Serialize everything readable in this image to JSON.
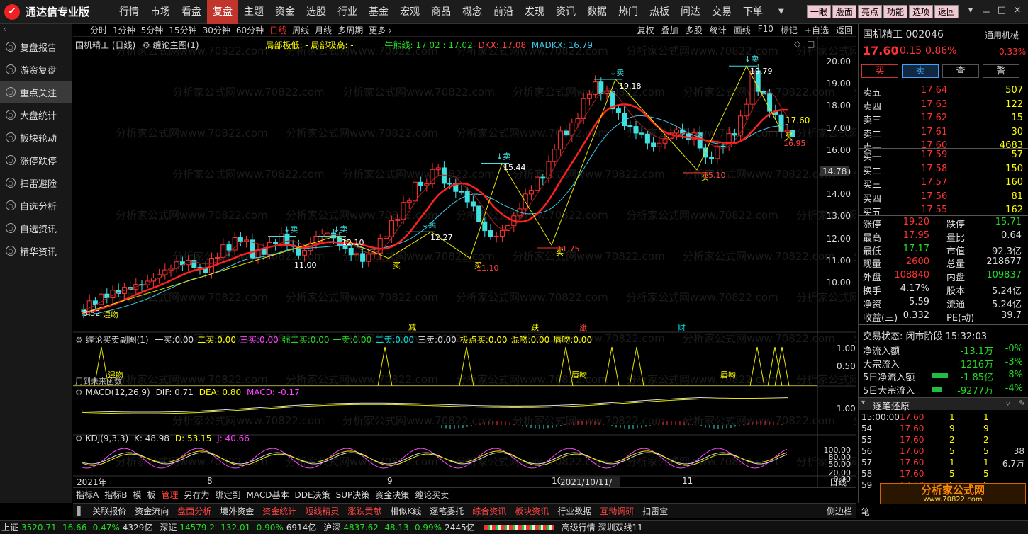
{
  "app": {
    "title": "通达信专业版",
    "logo_char": "✔"
  },
  "menu": [
    "行情",
    "市场",
    "看盘",
    "复盘",
    "主题",
    "资金",
    "选股",
    "行业",
    "基金",
    "宏观",
    "商品",
    "概念",
    "前沿",
    "发现",
    "资讯",
    "数据",
    "热门",
    "热板",
    "问达",
    "交易",
    "下单"
  ],
  "menu_active": "复盘",
  "top_pills": [
    "一眼",
    "版面",
    "亮点",
    "功能",
    "选项",
    "返回"
  ],
  "window_btns": [
    "▾",
    "－",
    "□",
    "×"
  ],
  "sidebar": [
    "复盘报告",
    "游资复盘",
    "重点关注",
    "大盘统计",
    "板块轮动",
    "涨停跌停",
    "扫雷避险",
    "自选分析",
    "自选资讯",
    "精华资讯"
  ],
  "sidebar_active": "重点关注",
  "periods": [
    "分时",
    "1分钟",
    "5分钟",
    "15分钟",
    "30分钟",
    "60分钟",
    "日线",
    "周线",
    "月线",
    "多周期",
    "更多 ›"
  ],
  "period_active": "日线",
  "tools": [
    "复权",
    "叠加",
    "多股",
    "统计",
    "画线",
    "F10",
    "标记",
    "+自选",
    "返回"
  ],
  "main_pane": {
    "title": "国机精工 (日线)",
    "indicator": "缠论主图(1)",
    "local_high_low": "局部极低: -  局部极高: -",
    "niu": "牛熊线: 17.02 : 17.02",
    "dkx": "DKX: 17.08",
    "madkx": "MADKX: 16.79",
    "price_ticks": [
      "20.00",
      "19.00",
      "18.00",
      "17.00",
      "16.00",
      "15.00",
      "14.00",
      "13.00",
      "12.00",
      "11.00",
      "10.00"
    ],
    "cursor_price": "14.78",
    "last_price_label": "17.60",
    "peak_labels": [
      "11.00",
      "12.10",
      "12.27",
      "15.44",
      "19.18",
      "19.79"
    ],
    "trough_labels": [
      "11.10",
      "11.75",
      "15.10",
      "16.95",
      "8.52"
    ],
    "sell_label": "↓卖",
    "buy_label": "买",
    "left_note": "混吻",
    "events": [
      "减",
      "跌",
      "涨",
      "财"
    ]
  },
  "sub1": {
    "title": "缠论买卖副图(1)",
    "items": [
      {
        "k": "一买:",
        "v": "0.00",
        "c": "white"
      },
      {
        "k": "二买:",
        "v": "0.00",
        "c": "yellow"
      },
      {
        "k": "三买:",
        "v": "0.00",
        "c": "magenta"
      },
      {
        "k": "强二买:",
        "v": "0.00",
        "c": "green"
      },
      {
        "k": "一卖:",
        "v": "0.00",
        "c": "green"
      },
      {
        "k": "二卖:",
        "v": "0.00",
        "c": "cyan"
      },
      {
        "k": "三卖:",
        "v": "0.00",
        "c": "white"
      },
      {
        "k": "极点买:",
        "v": "0.00",
        "c": "yellow"
      },
      {
        "k": "混吻:",
        "v": "0.00",
        "c": "yellow"
      },
      {
        "k": "唇吻:",
        "v": "0.00",
        "c": "yellow"
      }
    ],
    "ticks": [
      "1.00",
      "0.50"
    ],
    "note": "用到未来函数",
    "labels": [
      "混吻",
      "唇吻",
      "唇吻"
    ]
  },
  "macd": {
    "title": "MACD(12,26,9)",
    "dif": "DIF: 0.71",
    "dea": "DEA: 0.80",
    "macd": "MACD: -0.17",
    "tick": "1.00"
  },
  "kdj": {
    "title": "KDJ(9,3,3)",
    "k": "K: 48.98",
    "d": "D: 53.15",
    "j": "J: 40.66",
    "ticks": [
      "100.00",
      "80.00",
      "50.00",
      "20.00",
      "0.00"
    ]
  },
  "xaxis": [
    "2021年",
    "8",
    "9",
    "10",
    "2021/10/11/一",
    "11"
  ],
  "xaxis_right": "日线",
  "bottom_tabs": [
    "指标A",
    "指标B",
    "模",
    "板",
    "管理",
    "另存为",
    "绑定到",
    "MACD基本",
    "DDE决策",
    "SUP决策",
    "资金决策",
    "缠论买卖"
  ],
  "bottom_tab_active": "管理",
  "funcbar": [
    "关联报价",
    "资金流向",
    "盘面分析",
    "境外资金",
    "资金统计",
    "短线精灵",
    "涨跌贡献",
    "相似K线",
    "逐笔委托",
    "综合资讯",
    "板块资讯",
    "行业数据",
    "互动调研",
    "扫雷宝"
  ],
  "funcbar_red": [
    "盘面分析",
    "资金统计",
    "短线精灵",
    "涨跌贡献",
    "综合资讯",
    "板块资讯",
    "互动调研"
  ],
  "funcbar_right": "侧边栏",
  "quote": {
    "name": "国机精工 002046",
    "sector": "通用机械",
    "price": "17.60",
    "change": "0.15",
    "pct": "0.86%",
    "pct2": "0.33%",
    "actions": [
      "买",
      "卖",
      "查",
      "警"
    ],
    "asks": [
      [
        "卖五",
        "17.64",
        "507"
      ],
      [
        "卖四",
        "17.63",
        "122"
      ],
      [
        "卖三",
        "17.62",
        "15"
      ],
      [
        "卖二",
        "17.61",
        "30"
      ],
      [
        "卖一",
        "17.60",
        "4683"
      ]
    ],
    "bids": [
      [
        "买一",
        "17.59",
        "57"
      ],
      [
        "买二",
        "17.58",
        "150"
      ],
      [
        "买三",
        "17.57",
        "160"
      ],
      [
        "买四",
        "17.56",
        "81"
      ],
      [
        "买五",
        "17.55",
        "162"
      ]
    ],
    "stats": [
      [
        "涨停",
        "19.20",
        "跌停",
        "15.71"
      ],
      [
        "最高",
        "17.95",
        "量比",
        "0.64"
      ],
      [
        "最低",
        "17.17",
        "市值",
        "92.3亿"
      ],
      [
        "现量",
        "2600",
        "总量",
        "218677"
      ],
      [
        "外盘",
        "108840",
        "内盘",
        "109837"
      ],
      [
        "换手",
        "4.17%",
        "股本",
        "5.24亿"
      ],
      [
        "净资",
        "5.59",
        "流通",
        "5.24亿"
      ],
      [
        "收益(三)",
        "0.332",
        "PE(动)",
        "39.7"
      ]
    ],
    "trade_status": "交易状态: 闭市阶段 15:32:03",
    "flows": [
      [
        "净流入额",
        "-13.1万",
        "-0%"
      ],
      [
        "大宗流入",
        "-1216万",
        "-3%"
      ],
      [
        "5日净流入额",
        "-1.85亿",
        "-8%"
      ],
      [
        "5日大宗流入",
        "-9277万",
        "-4%"
      ]
    ],
    "tick_title": "逐笔还原",
    "ticks": [
      [
        "15:00:00",
        "17.60",
        "1",
        "1",
        ""
      ],
      [
        "54",
        "17.60",
        "9",
        "9",
        ""
      ],
      [
        "55",
        "17.60",
        "2",
        "2",
        ""
      ],
      [
        "56",
        "17.60",
        "5",
        "5",
        "38"
      ],
      [
        "57",
        "17.60",
        "1",
        "1",
        "6.7万"
      ],
      [
        "58",
        "17.60",
        "5",
        "5",
        ""
      ],
      [
        "59",
        "17.60",
        "5",
        "5",
        ""
      ]
    ],
    "side_tab": "笔"
  },
  "status": {
    "sh": "上证",
    "sh_v": "3520.71",
    "sh_c": "-16.66",
    "sh_p": "-0.47%",
    "sh_amt": "4329亿",
    "sz": "深证",
    "sz_v": "14579.2",
    "sz_c": "-132.01",
    "sz_p": "-0.90%",
    "sz_amt": "6914亿",
    "hs": "沪深",
    "hs_v": "4837.62",
    "hs_c": "-48.13",
    "hs_p": "-0.99%",
    "hs_amt": "2445亿",
    "extra": "高级行情 深圳双线11"
  },
  "brand": {
    "name": "分析家公式网",
    "url": "www.70822.com"
  },
  "colors": {
    "up": "#ff3333",
    "down": "#22dd22",
    "menu_active": "#c0362c",
    "ma_red": "#ff2020",
    "ma_cyan": "#40c8e8",
    "ma_yellow": "#e8e800"
  }
}
